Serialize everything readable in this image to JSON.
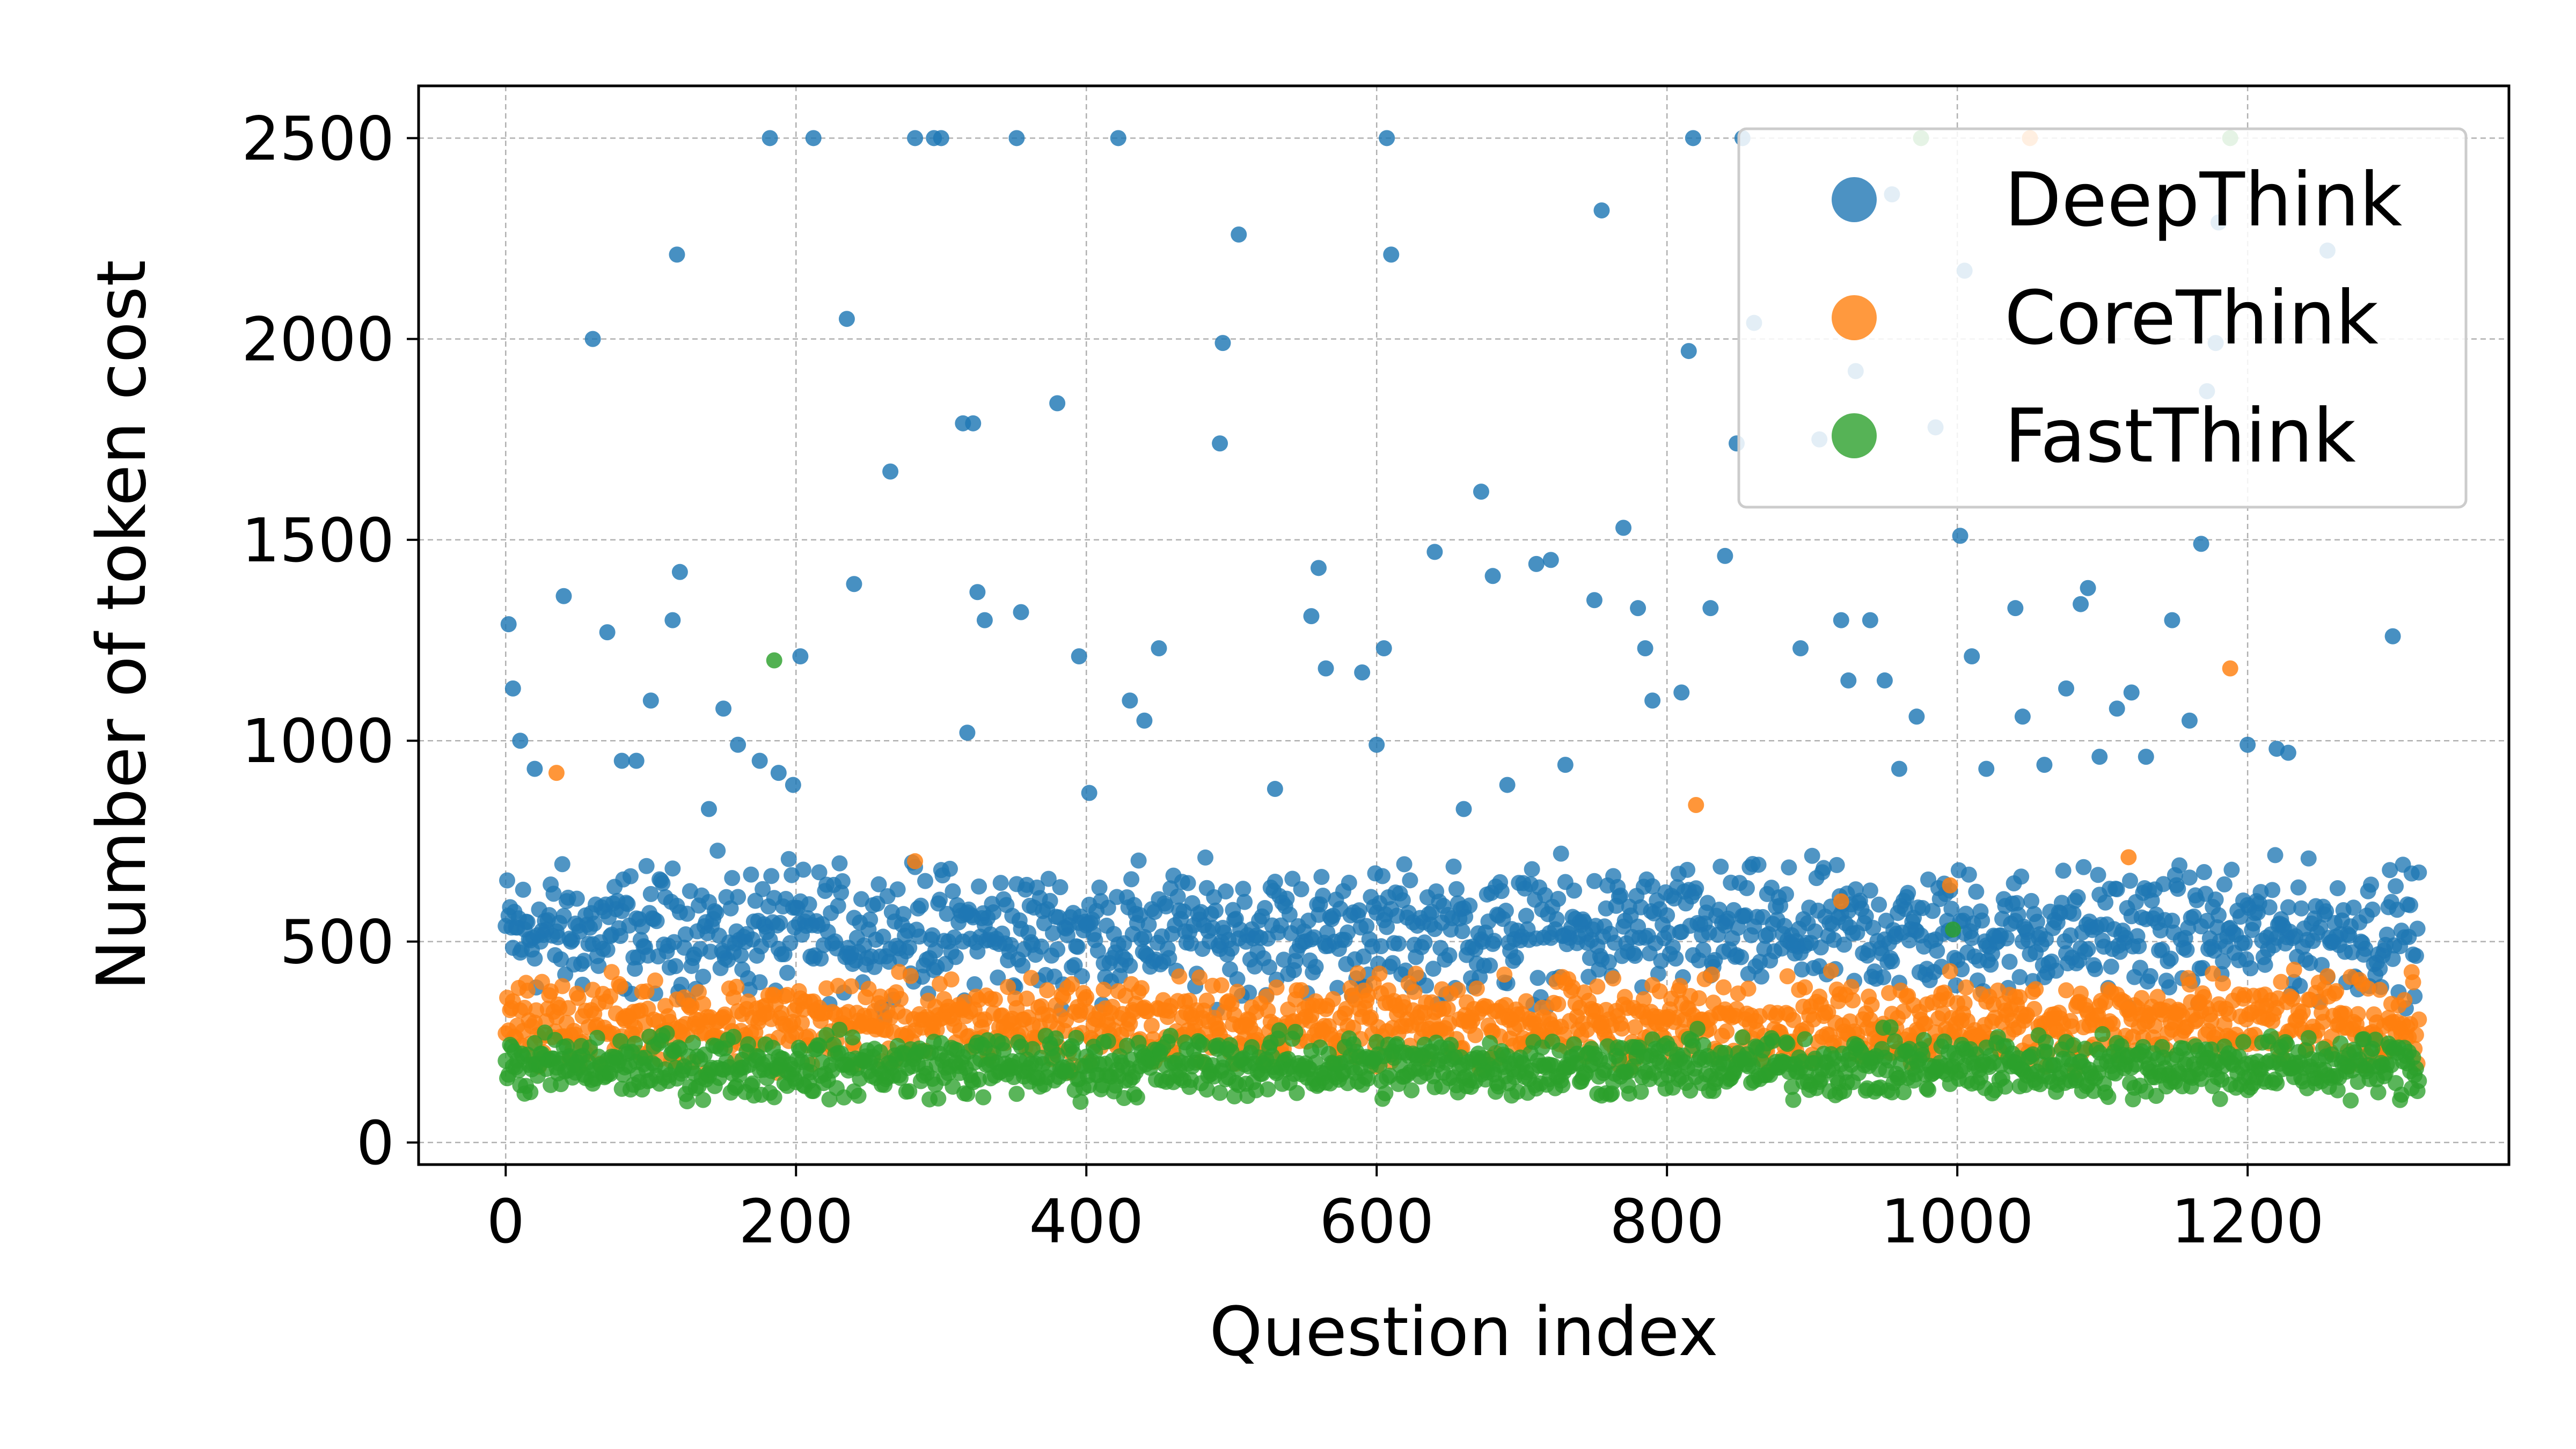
{
  "chart_data": {
    "type": "scatter",
    "title": "",
    "xlabel": "Question index",
    "ylabel": "Number of token cost",
    "xlim": [
      -60,
      1380
    ],
    "ylim": [
      -55,
      2630
    ],
    "x_ticks": [
      0,
      200,
      400,
      600,
      800,
      1000,
      1200
    ],
    "y_ticks": [
      0,
      500,
      1000,
      1500,
      2000,
      2500
    ],
    "grid": true,
    "legend_position": "top-right",
    "n_questions": 1319,
    "series": [
      {
        "name": "DeepThink",
        "color": "#1f77b4",
        "typical_range": [
          300,
          750
        ],
        "outliers": [
          [
            2,
            1290
          ],
          [
            5,
            1130
          ],
          [
            10,
            1000
          ],
          [
            20,
            930
          ],
          [
            40,
            1360
          ],
          [
            60,
            2000
          ],
          [
            70,
            1270
          ],
          [
            80,
            950
          ],
          [
            90,
            950
          ],
          [
            100,
            1100
          ],
          [
            115,
            1300
          ],
          [
            118,
            2210
          ],
          [
            120,
            1420
          ],
          [
            140,
            830
          ],
          [
            150,
            1080
          ],
          [
            160,
            990
          ],
          [
            175,
            950
          ],
          [
            182,
            2500
          ],
          [
            188,
            920
          ],
          [
            198,
            890
          ],
          [
            203,
            1210
          ],
          [
            212,
            2500
          ],
          [
            235,
            2050
          ],
          [
            240,
            1390
          ],
          [
            265,
            1670
          ],
          [
            282,
            2500
          ],
          [
            295,
            2500
          ],
          [
            300,
            2500
          ],
          [
            315,
            1790
          ],
          [
            322,
            1790
          ],
          [
            318,
            1020
          ],
          [
            325,
            1370
          ],
          [
            330,
            1300
          ],
          [
            355,
            1320
          ],
          [
            352,
            2500
          ],
          [
            380,
            1840
          ],
          [
            395,
            1210
          ],
          [
            402,
            870
          ],
          [
            422,
            2500
          ],
          [
            430,
            1100
          ],
          [
            440,
            1050
          ],
          [
            450,
            1230
          ],
          [
            492,
            1740
          ],
          [
            494,
            1990
          ],
          [
            505,
            2260
          ],
          [
            530,
            880
          ],
          [
            555,
            1310
          ],
          [
            560,
            1430
          ],
          [
            565,
            1180
          ],
          [
            590,
            1170
          ],
          [
            600,
            990
          ],
          [
            607,
            2500
          ],
          [
            605,
            1230
          ],
          [
            610,
            2210
          ],
          [
            640,
            1470
          ],
          [
            660,
            830
          ],
          [
            672,
            1620
          ],
          [
            680,
            1410
          ],
          [
            690,
            890
          ],
          [
            710,
            1440
          ],
          [
            720,
            1450
          ],
          [
            730,
            940
          ],
          [
            750,
            1350
          ],
          [
            755,
            2320
          ],
          [
            770,
            1530
          ],
          [
            780,
            1330
          ],
          [
            785,
            1230
          ],
          [
            790,
            1100
          ],
          [
            810,
            1120
          ],
          [
            815,
            1970
          ],
          [
            818,
            2500
          ],
          [
            830,
            1330
          ],
          [
            840,
            1460
          ],
          [
            848,
            1740
          ],
          [
            852,
            2500
          ],
          [
            860,
            2040
          ],
          [
            892,
            1230
          ],
          [
            905,
            1750
          ],
          [
            920,
            1300
          ],
          [
            925,
            1150
          ],
          [
            930,
            1920
          ],
          [
            940,
            1300
          ],
          [
            950,
            1150
          ],
          [
            955,
            2360
          ],
          [
            960,
            930
          ],
          [
            972,
            1060
          ],
          [
            985,
            1780
          ],
          [
            1002,
            1510
          ],
          [
            1005,
            2170
          ],
          [
            1010,
            1210
          ],
          [
            1020,
            930
          ],
          [
            1040,
            1330
          ],
          [
            1045,
            1060
          ],
          [
            1060,
            940
          ],
          [
            1075,
            1130
          ],
          [
            1085,
            1340
          ],
          [
            1090,
            1380
          ],
          [
            1098,
            960
          ],
          [
            1110,
            1080
          ],
          [
            1120,
            1120
          ],
          [
            1130,
            960
          ],
          [
            1148,
            1300
          ],
          [
            1160,
            1050
          ],
          [
            1168,
            1490
          ],
          [
            1172,
            1870
          ],
          [
            1178,
            1990
          ],
          [
            1180,
            2290
          ],
          [
            1200,
            990
          ],
          [
            1220,
            980
          ],
          [
            1228,
            970
          ],
          [
            1255,
            2220
          ],
          [
            1300,
            1260
          ]
        ]
      },
      {
        "name": "CoreThink",
        "color": "#ff7f0e",
        "typical_range": [
          150,
          450
        ],
        "outliers": [
          [
            35,
            920
          ],
          [
            282,
            700
          ],
          [
            820,
            840
          ],
          [
            1050,
            2500
          ],
          [
            1118,
            710
          ],
          [
            1188,
            1180
          ],
          [
            920,
            600
          ],
          [
            995,
            640
          ]
        ]
      },
      {
        "name": "FastThink",
        "color": "#2ca02c",
        "typical_range": [
          80,
          300
        ],
        "outliers": [
          [
            185,
            1200
          ],
          [
            997,
            530
          ],
          [
            975,
            2500
          ],
          [
            1188,
            2500
          ]
        ]
      }
    ]
  }
}
